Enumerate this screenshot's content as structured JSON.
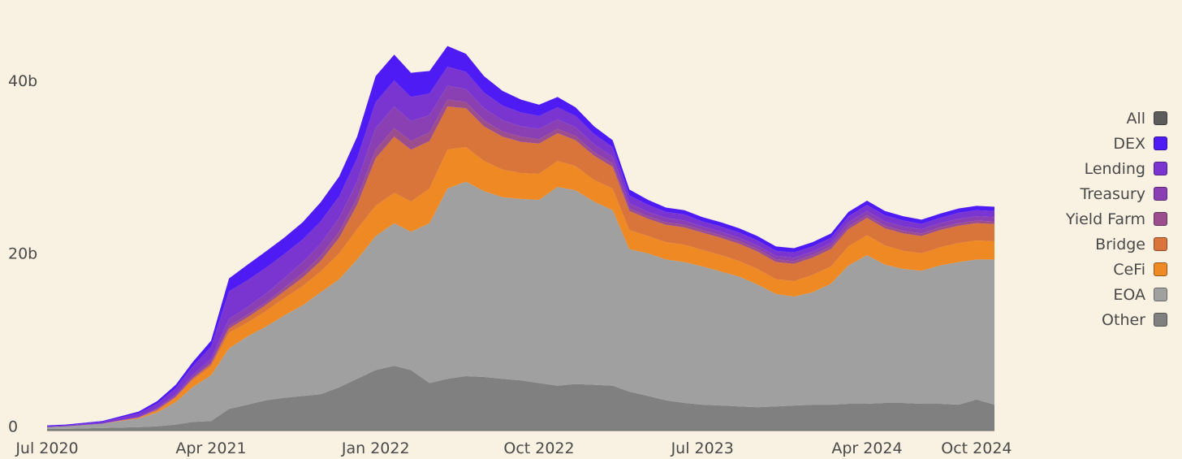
{
  "chart_data": {
    "type": "area",
    "stacked": true,
    "title": "",
    "xlabel": "",
    "ylabel": "",
    "y_unit": "b",
    "ylim": [
      0,
      47
    ],
    "yticks": [
      {
        "value": 0,
        "label": "0"
      },
      {
        "value": 20,
        "label": "20b"
      },
      {
        "value": 40,
        "label": "40b"
      }
    ],
    "xlim": [
      "2020-07-01",
      "2024-10-31"
    ],
    "xticks": [
      {
        "date": "2020-07-01",
        "label": "Jul 2020"
      },
      {
        "date": "2021-04-01",
        "label": "Apr 2021"
      },
      {
        "date": "2022-01-01",
        "label": "Jan 2022"
      },
      {
        "date": "2022-10-01",
        "label": "Oct 2022"
      },
      {
        "date": "2023-07-01",
        "label": "Jul 2023"
      },
      {
        "date": "2024-04-01",
        "label": "Apr 2024"
      },
      {
        "date": "2024-10-01",
        "label": "Oct 2024"
      }
    ],
    "legend_position": "right",
    "legend": [
      {
        "name": "All",
        "color": "#5c5c5c"
      },
      {
        "name": "DEX",
        "color": "#4f1bf5"
      },
      {
        "name": "Lending",
        "color": "#7a35d0"
      },
      {
        "name": "Treasury",
        "color": "#8a3fb3"
      },
      {
        "name": "Yield Farm",
        "color": "#9c4d8e"
      },
      {
        "name": "Bridge",
        "color": "#d9743a"
      },
      {
        "name": "CeFi",
        "color": "#ee8924"
      },
      {
        "name": "EOA",
        "color": "#a0a0a0"
      },
      {
        "name": "Other",
        "color": "#808080"
      }
    ],
    "x": [
      "2020-07-01",
      "2020-08-01",
      "2020-10-01",
      "2020-12-01",
      "2021-01-01",
      "2021-02-01",
      "2021-03-01",
      "2021-04-01",
      "2021-05-01",
      "2021-06-01",
      "2021-07-01",
      "2021-08-01",
      "2021-09-01",
      "2021-10-01",
      "2021-11-01",
      "2021-12-01",
      "2022-01-01",
      "2022-02-01",
      "2022-03-01",
      "2022-04-01",
      "2022-05-01",
      "2022-06-01",
      "2022-07-01",
      "2022-08-01",
      "2022-09-01",
      "2022-10-01",
      "2022-11-01",
      "2022-12-01",
      "2023-01-01",
      "2023-02-01",
      "2023-03-01",
      "2023-04-01",
      "2023-05-01",
      "2023-06-01",
      "2023-07-01",
      "2023-08-01",
      "2023-09-01",
      "2023-10-01",
      "2023-11-01",
      "2023-12-01",
      "2024-01-01",
      "2024-02-01",
      "2024-03-01",
      "2024-04-01",
      "2024-05-01",
      "2024-06-01",
      "2024-07-01",
      "2024-08-01",
      "2024-09-01",
      "2024-10-01",
      "2024-10-31"
    ],
    "series": [
      {
        "name": "Other",
        "color": "#808080",
        "values": [
          0.2,
          0.2,
          0.3,
          0.4,
          0.5,
          0.7,
          1.0,
          1.1,
          2.5,
          3.0,
          3.5,
          3.8,
          4.0,
          4.2,
          5.0,
          6.0,
          7.0,
          7.5,
          7.0,
          5.5,
          6.0,
          6.3,
          6.2,
          6.0,
          5.8,
          5.5,
          5.2,
          5.4,
          5.3,
          5.2,
          4.5,
          4.0,
          3.5,
          3.2,
          3.0,
          2.9,
          2.8,
          2.7,
          2.8,
          2.9,
          3.0,
          3.0,
          3.1,
          3.1,
          3.2,
          3.2,
          3.1,
          3.1,
          3.0,
          3.6,
          3.0
        ]
      },
      {
        "name": "EOA",
        "color": "#a0a0a0",
        "values": [
          0.2,
          0.3,
          0.5,
          1.0,
          1.6,
          2.6,
          4.0,
          5.3,
          7.0,
          7.9,
          8.5,
          9.5,
          10.5,
          11.8,
          12.5,
          13.8,
          15.5,
          16.5,
          16.0,
          18.5,
          22.0,
          22.5,
          21.5,
          21.0,
          21.0,
          21.2,
          23.0,
          22.4,
          21.2,
          20.3,
          16.5,
          16.5,
          16.3,
          16.3,
          16.0,
          15.5,
          15.0,
          14.2,
          13.0,
          12.6,
          13.0,
          14.0,
          16.0,
          17.2,
          16.0,
          15.5,
          15.4,
          16.0,
          16.5,
          16.2,
          16.8
        ]
      },
      {
        "name": "CeFi",
        "color": "#ee8924",
        "values": [
          0.0,
          0.0,
          0.0,
          0.1,
          0.2,
          0.5,
          0.8,
          1.0,
          1.8,
          1.6,
          1.8,
          2.0,
          2.2,
          2.4,
          3.0,
          3.5,
          3.5,
          3.5,
          3.5,
          4.0,
          4.5,
          4.0,
          3.5,
          3.2,
          3.0,
          3.0,
          3.0,
          2.8,
          2.5,
          2.5,
          2.2,
          2.0,
          2.0,
          2.0,
          1.9,
          1.9,
          1.8,
          1.8,
          1.7,
          1.8,
          2.0,
          2.0,
          2.2,
          2.3,
          2.2,
          2.1,
          2.0,
          2.1,
          2.2,
          2.2,
          2.1
        ]
      },
      {
        "name": "Bridge",
        "color": "#d9743a",
        "values": [
          0.0,
          0.0,
          0.0,
          0.0,
          0.1,
          0.1,
          0.2,
          0.3,
          0.5,
          0.6,
          0.7,
          0.8,
          1.0,
          1.2,
          1.8,
          2.8,
          5.5,
          6.5,
          6.0,
          5.5,
          5.0,
          4.5,
          4.0,
          3.8,
          3.6,
          3.5,
          3.2,
          3.0,
          2.8,
          2.5,
          2.2,
          2.0,
          2.0,
          2.0,
          2.0,
          2.0,
          2.0,
          2.0,
          2.0,
          2.0,
          2.0,
          2.0,
          2.0,
          2.0,
          2.0,
          2.0,
          2.0,
          2.0,
          2.0,
          2.0,
          2.0
        ]
      },
      {
        "name": "Yield Farm",
        "color": "#9c4d8e",
        "values": [
          0.0,
          0.0,
          0.0,
          0.0,
          0.1,
          0.1,
          0.1,
          0.2,
          0.3,
          0.3,
          0.3,
          0.4,
          0.5,
          0.6,
          0.7,
          0.8,
          1.0,
          1.0,
          1.0,
          1.0,
          0.8,
          0.7,
          0.7,
          0.6,
          0.6,
          0.5,
          0.5,
          0.5,
          0.4,
          0.4,
          0.3,
          0.3,
          0.3,
          0.3,
          0.3,
          0.3,
          0.3,
          0.3,
          0.3,
          0.3,
          0.3,
          0.3,
          0.3,
          0.3,
          0.3,
          0.3,
          0.3,
          0.3,
          0.3,
          0.3,
          0.3
        ]
      },
      {
        "name": "Treasury",
        "color": "#8a3fb3",
        "values": [
          0.0,
          0.0,
          0.0,
          0.1,
          0.1,
          0.2,
          0.3,
          0.4,
          0.8,
          0.9,
          1.0,
          1.1,
          1.3,
          1.4,
          1.6,
          1.9,
          2.5,
          2.5,
          2.3,
          2.0,
          1.6,
          1.5,
          1.4,
          1.3,
          1.2,
          1.2,
          1.1,
          1.0,
          0.9,
          0.8,
          0.6,
          0.5,
          0.5,
          0.5,
          0.4,
          0.4,
          0.4,
          0.4,
          0.4,
          0.4,
          0.4,
          0.4,
          0.5,
          0.5,
          0.5,
          0.5,
          0.5,
          0.5,
          0.5,
          0.5,
          0.5
        ]
      },
      {
        "name": "Lending",
        "color": "#7a35d0",
        "values": [
          0.1,
          0.1,
          0.2,
          0.4,
          0.5,
          0.7,
          1.0,
          1.4,
          3.2,
          3.1,
          3.0,
          2.8,
          2.6,
          2.6,
          2.5,
          2.7,
          3.0,
          3.0,
          2.8,
          2.5,
          2.2,
          2.0,
          1.8,
          1.7,
          1.6,
          1.5,
          1.4,
          1.3,
          1.2,
          1.1,
          0.9,
          0.8,
          0.7,
          0.7,
          0.6,
          0.6,
          0.6,
          0.6,
          0.6,
          0.6,
          0.6,
          0.6,
          0.7,
          0.7,
          0.7,
          0.7,
          0.6,
          0.6,
          0.7,
          0.7,
          0.7
        ]
      },
      {
        "name": "DEX",
        "color": "#4f1bf5",
        "values": [
          0.1,
          0.1,
          0.1,
          0.2,
          0.3,
          0.4,
          0.5,
          0.7,
          1.5,
          1.8,
          1.9,
          1.9,
          2.0,
          2.2,
          2.3,
          2.5,
          3.0,
          3.0,
          2.8,
          2.6,
          2.4,
          2.1,
          1.9,
          1.7,
          1.5,
          1.3,
          1.2,
          1.0,
          0.9,
          0.8,
          0.7,
          0.6,
          0.5,
          0.5,
          0.5,
          0.5,
          0.5,
          0.5,
          0.5,
          0.5,
          0.5,
          0.5,
          0.5,
          0.5,
          0.5,
          0.5,
          0.5,
          0.5,
          0.5,
          0.5,
          0.5
        ]
      }
    ]
  }
}
